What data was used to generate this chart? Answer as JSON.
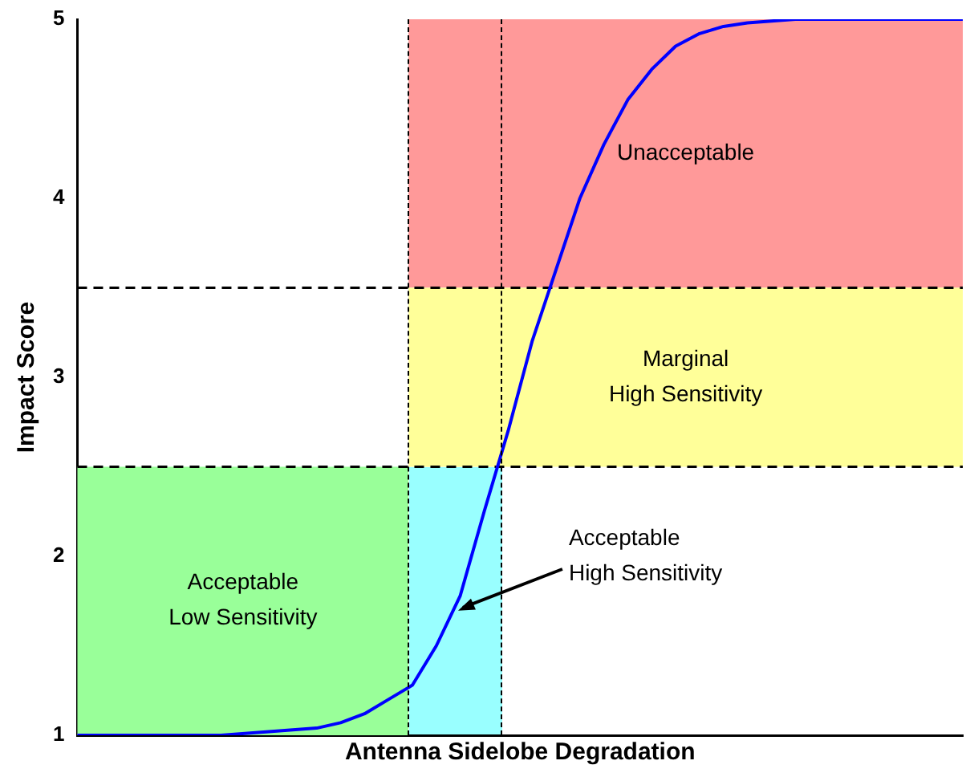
{
  "chart_data": {
    "type": "line",
    "xlabel": "Antenna Sidelobe Degradation",
    "ylabel": "Impact Score",
    "categories": [
      null,
      null,
      null,
      null,
      null,
      null,
      null,
      null,
      null,
      null,
      null,
      null,
      null,
      null,
      null,
      null,
      null,
      null,
      null,
      null,
      null,
      null,
      null,
      null,
      null,
      null,
      null,
      null,
      null,
      null,
      null,
      null,
      null,
      null,
      null,
      null,
      null,
      null
    ],
    "series": [
      {
        "color": "#0000ff",
        "values": [
          1.0,
          1.0,
          1.0,
          1.0,
          1.0,
          1.0,
          1.0,
          1.01,
          1.02,
          1.03,
          1.04,
          1.07,
          1.12,
          1.2,
          1.28,
          1.5,
          1.78,
          2.25,
          2.7,
          3.2,
          3.6,
          4.0,
          4.3,
          4.55,
          4.72,
          4.85,
          4.92,
          4.96,
          4.98,
          4.99,
          5.0,
          5.0,
          5.0,
          5.0,
          5.0,
          5.0,
          5.0,
          5.0
        ]
      }
    ],
    "ylim": [
      1,
      5
    ],
    "yticks": [
      1,
      2,
      3,
      4,
      5
    ],
    "tick_labels": "y",
    "grid": false,
    "legend": false,
    "marker": "none",
    "line_style": "solid",
    "bands": [
      {
        "axis": "y",
        "from": 3.5,
        "to": 5,
        "color": "#ff9999",
        "label": "Unacceptable"
      },
      {
        "axis": "y",
        "from": 2.5,
        "to": 3.5,
        "color": "#ffff99",
        "label": "Marginal\nHigh Sensitivity"
      },
      {
        "axis": "y",
        "from": 1,
        "to": 2.5,
        "color": "#99ff99",
        "label": "Acceptable\nLow Sensitivity"
      }
    ],
    "ref_lines": [
      {
        "axis": "y",
        "value": 3.5,
        "line_style": "dashed"
      },
      {
        "axis": "y",
        "value": 2.5,
        "line_style": "dashed"
      }
    ],
    "annotations": [
      "Acceptable\nHigh Sensitivity"
    ]
  }
}
